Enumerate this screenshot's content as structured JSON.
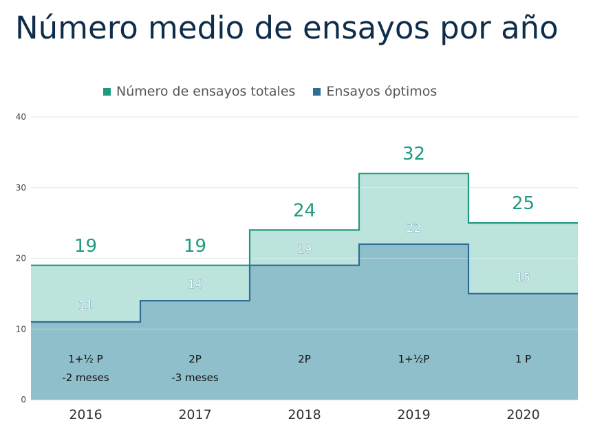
{
  "title": "Número medio de ensayos por año",
  "legend": {
    "total": "Número de ensayos totales",
    "optimal": "Ensayos óptimos"
  },
  "colors": {
    "total_line": "#1f9a80",
    "total_fill": "#bde3dd",
    "optimal_line": "#2e6d96",
    "optimal_fill": "#8fbfca",
    "title": "#0f2d4a"
  },
  "chart_data": {
    "type": "area",
    "step": true,
    "categories": [
      "2016",
      "2017",
      "2018",
      "2019",
      "2020"
    ],
    "ylim": [
      0,
      40
    ],
    "yticks": [
      "0",
      "10",
      "20",
      "30",
      "40"
    ],
    "grid": true,
    "legend_position": "top",
    "series": [
      {
        "name": "Número de ensayos totales",
        "values": [
          19,
          19,
          24,
          32,
          25
        ],
        "labels": [
          "19",
          "19",
          "24",
          "32",
          "25"
        ]
      },
      {
        "name": "Ensayos óptimos",
        "values": [
          11,
          14,
          19,
          22,
          15
        ],
        "labels": [
          "11",
          "14",
          "19",
          "22",
          "15"
        ]
      }
    ],
    "annotations": [
      {
        "line1": "1+½ P",
        "line2": "-2 meses"
      },
      {
        "line1": "2P",
        "line2": "-3 meses"
      },
      {
        "line1": "2P",
        "line2": ""
      },
      {
        "line1": "1+½P",
        "line2": ""
      },
      {
        "line1": "1 P",
        "line2": ""
      }
    ]
  }
}
